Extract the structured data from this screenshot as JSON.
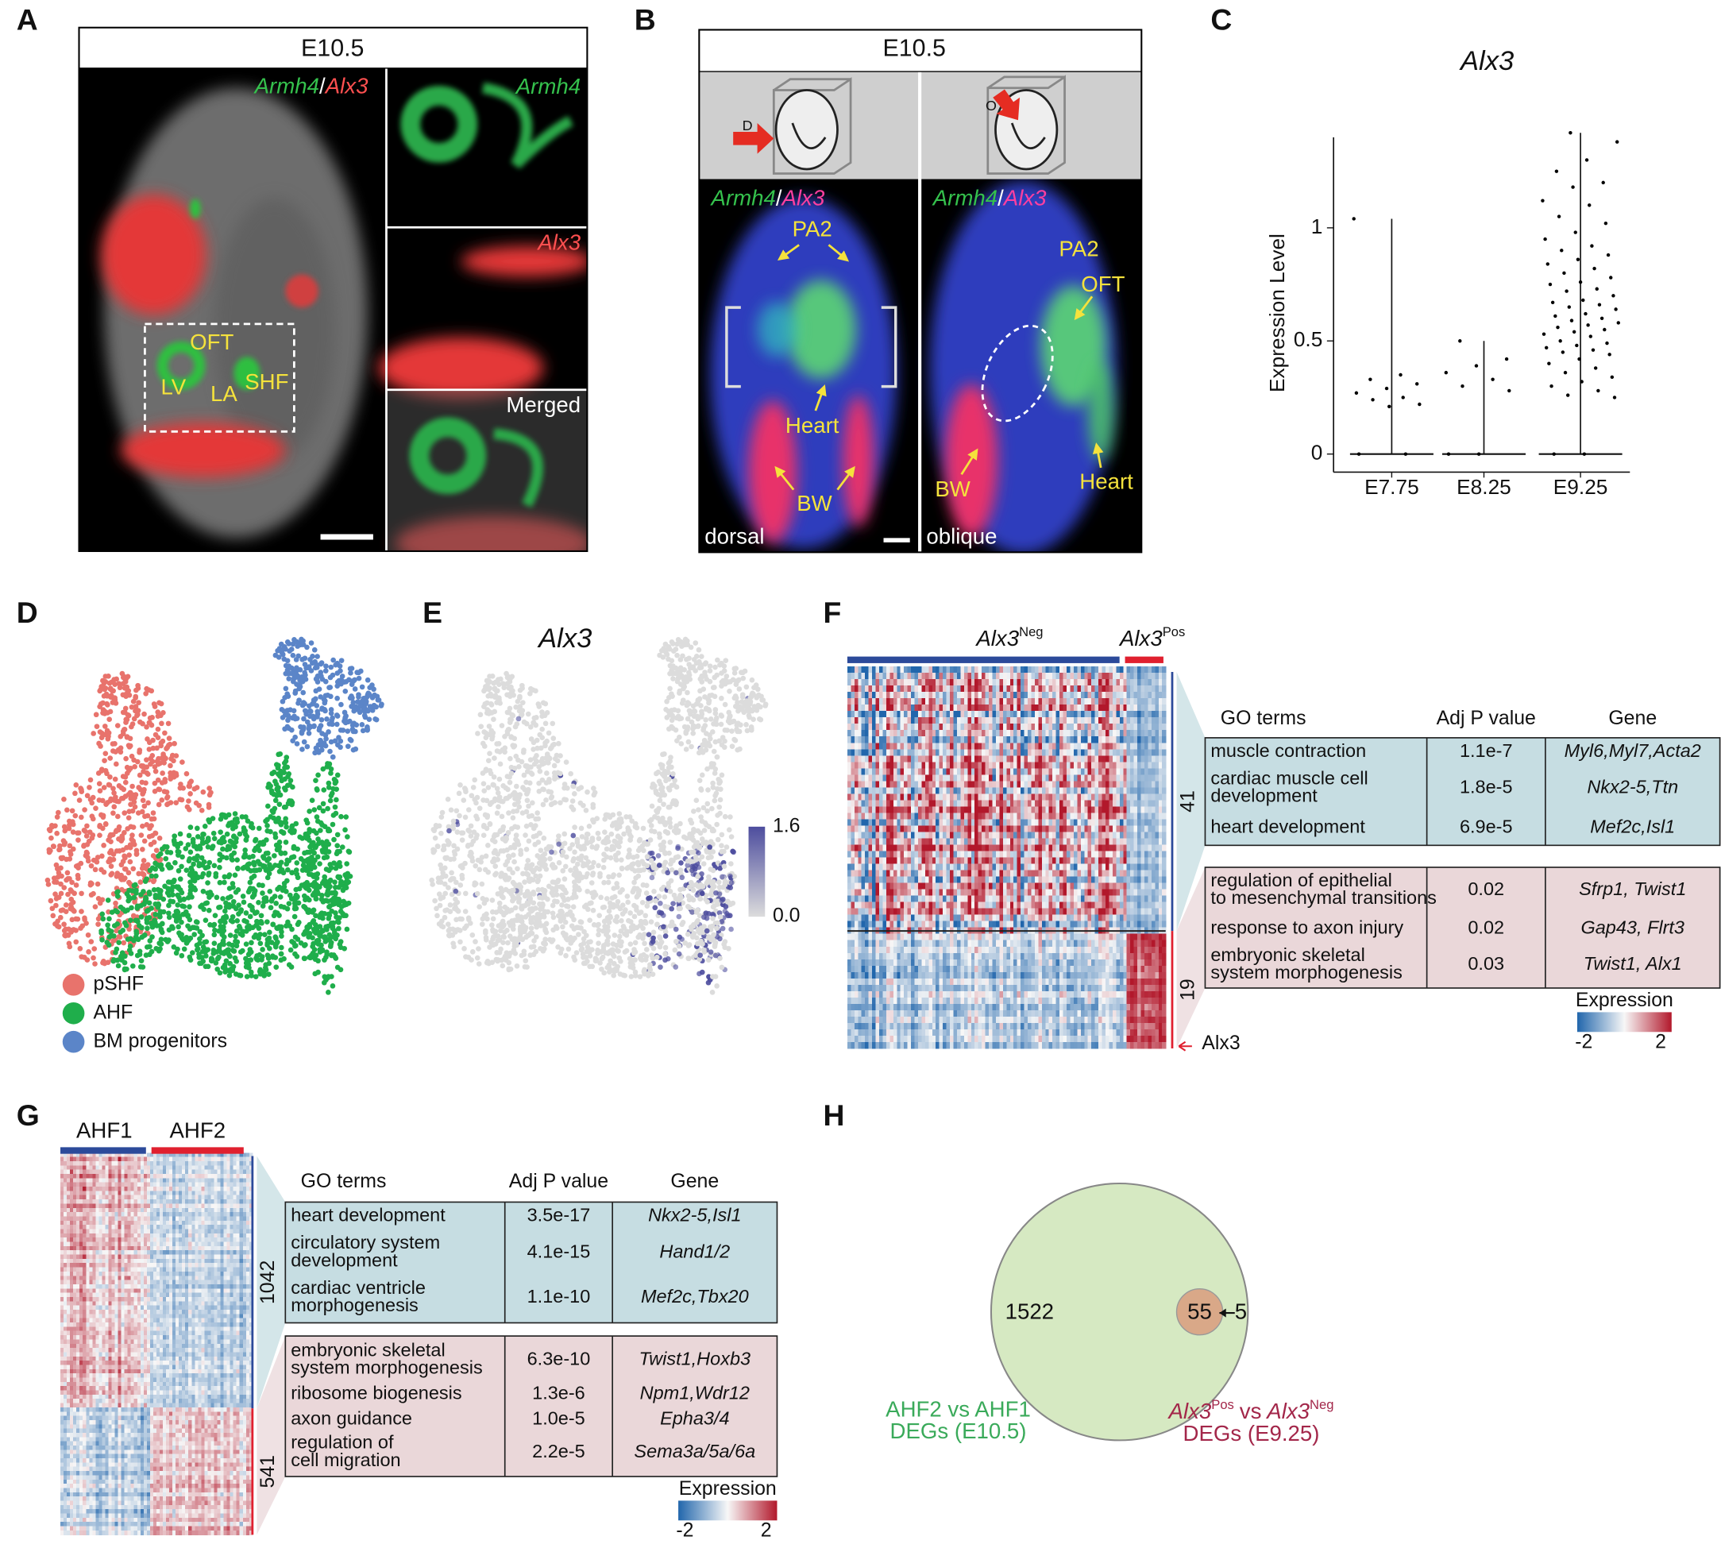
{
  "figure": {
    "A": {
      "label": "A",
      "stage": "E10.5",
      "merge_label": {
        "green": "Armh4",
        "sep": "/",
        "red": "Alx3"
      },
      "insets": [
        "Armh4",
        "Alx3",
        "Merged"
      ],
      "annotations": [
        "OFT",
        "LV",
        "LA",
        "SHF"
      ]
    },
    "B": {
      "label": "B",
      "stage": "E10.5",
      "views": [
        {
          "arrow": "D",
          "green": "Armh4",
          "sep": "/",
          "red": "Alx3",
          "annotations": [
            "PA2",
            "Heart",
            "BW"
          ],
          "name": "dorsal"
        },
        {
          "arrow": "O",
          "green": "Armh4",
          "sep": "/",
          "red": "Alx3",
          "annotations": [
            "PA2",
            "OFT",
            "BW",
            "Heart"
          ],
          "name": "oblique"
        }
      ]
    },
    "C": {
      "label": "C"
    },
    "D": {
      "label": "D",
      "legend": [
        {
          "name": "pSHF",
          "color": "#e8736c"
        },
        {
          "name": "AHF",
          "color": "#1fae4b"
        },
        {
          "name": "BM progenitors",
          "color": "#5b85c8"
        }
      ]
    },
    "E": {
      "label": "E",
      "title": "Alx3",
      "colorbar": {
        "ticks": [
          1.6,
          {
            "value": 0,
            "label": "0.0"
          }
        ],
        "colors": [
          "#4d4d9e",
          "#dcdcdc"
        ]
      }
    },
    "F": {
      "label": "F",
      "groups": [
        {
          "gene": "Alx3",
          "sup": "Neg",
          "color": "#2c4a9a"
        },
        {
          "gene": "Alx3",
          "sup": "Pos",
          "color": "#e0202f"
        }
      ],
      "header": [
        "GO terms",
        "Adj P value",
        "Gene"
      ],
      "clusters": [
        {
          "size": 41,
          "color": "#c6dde2",
          "rows": [
            {
              "term": [
                "muscle contraction"
              ],
              "p": "1.1e-7",
              "genes": "Myl6,Myl7,Acta2"
            },
            {
              "term": [
                "cardiac muscle cell",
                "development"
              ],
              "p": "1.8e-5",
              "genes": "Nkx2-5,Ttn"
            },
            {
              "term": [
                "heart development"
              ],
              "p": "6.9e-5",
              "genes": "Mef2c,Isl1"
            }
          ]
        },
        {
          "size": 19,
          "color": "#ead7d9",
          "rows": [
            {
              "term": [
                "regulation of epithelial",
                "to mesenchymal transitions"
              ],
              "p": "0.02",
              "genes": "Sfrp1, Twist1"
            },
            {
              "term": [
                "response to axon injury"
              ],
              "p": "0.02",
              "genes": "Gap43, Flrt3"
            },
            {
              "term": [
                "embryonic skeletal",
                "system morphogenesis"
              ],
              "p": "0.03",
              "genes": "Twist1, Alx1"
            }
          ]
        }
      ],
      "marker": "Alx3",
      "legend": {
        "title": "Expression",
        "ticks": [
          -2,
          2
        ]
      }
    },
    "G": {
      "label": "G",
      "groups": [
        {
          "name": "AHF1",
          "color": "#2c4a9a"
        },
        {
          "name": "AHF2",
          "color": "#e0202f"
        }
      ],
      "header": [
        "GO terms",
        "Adj P value",
        "Gene"
      ],
      "clusters": [
        {
          "size": 1042,
          "color": "#c6dde2",
          "rows": [
            {
              "term": [
                "heart development"
              ],
              "p": "3.5e-17",
              "genes": "Nkx2-5,Isl1"
            },
            {
              "term": [
                "circulatory system",
                "development"
              ],
              "p": "4.1e-15",
              "genes": "Hand1/2"
            },
            {
              "term": [
                "cardiac ventricle",
                "morphogenesis"
              ],
              "p": "1.1e-10",
              "genes": "Mef2c,Tbx20"
            }
          ]
        },
        {
          "size": 541,
          "color": "#ead7d9",
          "rows": [
            {
              "term": [
                "embryonic skeletal",
                "system morphogenesis"
              ],
              "p": "6.3e-10",
              "genes": "Twist1,Hoxb3"
            },
            {
              "term": [
                "ribosome biogenesis"
              ],
              "p": "1.3e-6",
              "genes": "Npm1,Wdr12"
            },
            {
              "term": [
                "axon guidance"
              ],
              "p": "1.0e-5",
              "genes": "Epha3/4"
            },
            {
              "term": [
                "regulation of",
                "cell migration"
              ],
              "p": "2.2e-5",
              "genes": "Sema3a/5a/6a"
            }
          ]
        }
      ],
      "legend": {
        "title": "Expression",
        "ticks": [
          -2,
          2
        ]
      }
    },
    "H": {
      "label": "H",
      "sets": [
        {
          "count": 1522,
          "title": "AHF2 vs AHF1",
          "subtitle": "DEGs (E10.5)",
          "color": "#d6e9c2",
          "text_color": "#3aaa5a"
        },
        {
          "count": 55,
          "title": {
            "gene1": "Alx3",
            "sup1": "Pos",
            "vs": "vs",
            "gene2": "Alx3",
            "sup2": "Neg"
          },
          "subtitle": "DEGs (E9.25)",
          "color": "#d9a888",
          "text_color": "#a3274a"
        }
      ],
      "exclusive": 5
    }
  },
  "chart_data": {
    "type": "strip",
    "title": "Alx3",
    "y_label": "Expression Level",
    "categories": [
      "E7.75",
      "E8.25",
      "E9.25"
    ],
    "values": [
      [
        1.04,
        0.35,
        0.33,
        0.31,
        0.29,
        0.27,
        0.25,
        0.24,
        0.22,
        0.21,
        0,
        0
      ],
      [
        0.5,
        0.42,
        0.39,
        0.36,
        0.33,
        0.3,
        0.28,
        0,
        0
      ],
      [
        1.42,
        1.38,
        1.3,
        1.25,
        1.2,
        1.18,
        1.12,
        1.1,
        1.05,
        1.02,
        0.98,
        0.95,
        0.92,
        0.9,
        0.88,
        0.86,
        0.84,
        0.82,
        0.8,
        0.78,
        0.76,
        0.75,
        0.73,
        0.72,
        0.7,
        0.68,
        0.67,
        0.66,
        0.65,
        0.64,
        0.62,
        0.61,
        0.6,
        0.59,
        0.58,
        0.57,
        0.56,
        0.55,
        0.54,
        0.53,
        0.52,
        0.5,
        0.49,
        0.48,
        0.47,
        0.46,
        0.45,
        0.44,
        0.42,
        0.4,
        0.38,
        0.36,
        0.34,
        0.32,
        0.3,
        0.28,
        0.26,
        0.25,
        0,
        0
      ]
    ],
    "color": "#000000",
    "ylim": [
      -0.08,
      1.4
    ],
    "yticks": [
      0,
      0.5,
      1
    ]
  }
}
